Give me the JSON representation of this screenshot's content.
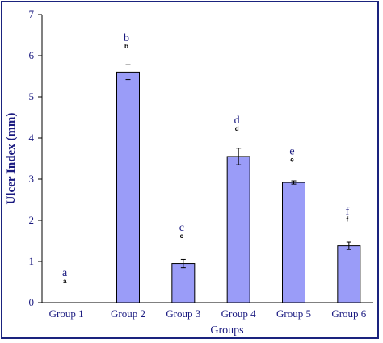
{
  "chart_data": {
    "type": "bar",
    "title": "",
    "xlabel": "Groups",
    "ylabel": "Ulcer Index (mm)",
    "ylim": [
      0,
      7
    ],
    "yticks": [
      "0",
      "1",
      "2",
      "3",
      "4",
      "5",
      "6",
      "7"
    ],
    "categories": [
      "Group 1",
      "Group 2",
      "Group 3",
      "Group 4",
      "Group 5",
      "Group 6"
    ],
    "values": [
      0,
      5.6,
      0.95,
      3.55,
      2.92,
      1.38
    ],
    "errors": [
      0,
      0.18,
      0.1,
      0.2,
      0.04,
      0.09
    ],
    "letters_upper": [
      "a",
      "b",
      "c",
      "d",
      "e",
      "f"
    ],
    "letters_lower": [
      "a",
      "b",
      "c",
      "d",
      "e",
      "f"
    ],
    "letter_positions": [
      0.65,
      6.35,
      1.75,
      4.35,
      3.6,
      2.15
    ],
    "bar_color": "#9a9cf8",
    "bar_edge_color": "#000000",
    "text_color": "#1a1a80",
    "border_color": "#1a237e",
    "grid": false
  }
}
